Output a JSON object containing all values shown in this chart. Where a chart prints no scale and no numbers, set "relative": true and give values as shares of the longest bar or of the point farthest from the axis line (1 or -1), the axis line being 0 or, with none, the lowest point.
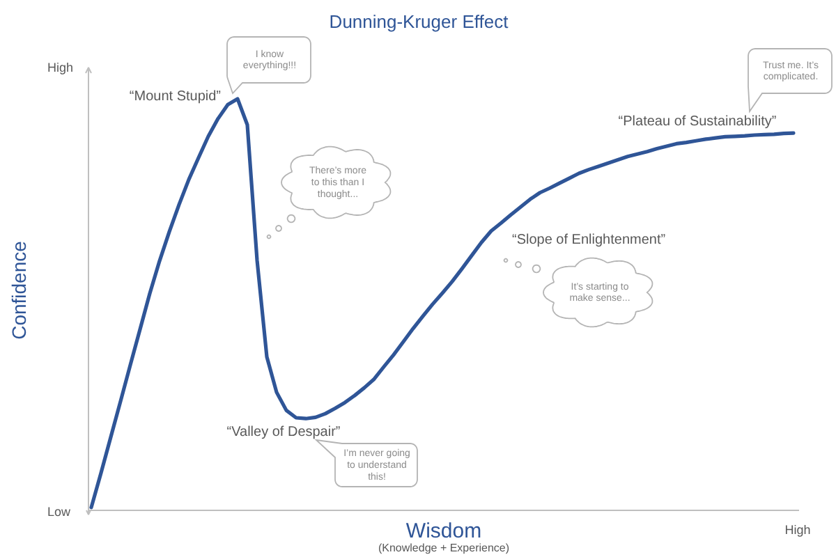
{
  "chart_data": {
    "type": "line",
    "relative": true,
    "title": "Dunning-Kruger Effect",
    "xlabel": "Wisdom",
    "ylabel": "Confidence",
    "categories": [
      null,
      null,
      null,
      null,
      null,
      null,
      null,
      null,
      null,
      null,
      null,
      null,
      null,
      null,
      null,
      null,
      null,
      null,
      null,
      null,
      null,
      null,
      null,
      null,
      null,
      null,
      null,
      null,
      null,
      null,
      null,
      null,
      null,
      null,
      null,
      null,
      null,
      null,
      null,
      null,
      null,
      null,
      null,
      null,
      null,
      null,
      null,
      null,
      null,
      null,
      null,
      null,
      null,
      null,
      null,
      null,
      null,
      null,
      null,
      null,
      null,
      null,
      null,
      null,
      null,
      null,
      null,
      null,
      null,
      null,
      null,
      null,
      null
    ],
    "series": [
      {
        "color": "#2f5597",
        "values": [
          0.007,
          0.091,
          0.178,
          0.265,
          0.353,
          0.44,
          0.527,
          0.606,
          0.677,
          0.743,
          0.804,
          0.857,
          0.909,
          0.952,
          0.986,
          1.0,
          0.937,
          0.608,
          0.373,
          0.287,
          0.243,
          0.225,
          0.223,
          0.226,
          0.235,
          0.248,
          0.262,
          0.279,
          0.298,
          0.319,
          0.349,
          0.378,
          0.41,
          0.442,
          0.472,
          0.501,
          0.528,
          0.556,
          0.587,
          0.619,
          0.651,
          0.679,
          0.698,
          0.718,
          0.737,
          0.756,
          0.772,
          0.783,
          0.795,
          0.807,
          0.819,
          0.828,
          0.836,
          0.844,
          0.852,
          0.86,
          0.866,
          0.872,
          0.879,
          0.885,
          0.891,
          0.894,
          0.898,
          0.902,
          0.905,
          0.908,
          0.909,
          0.91,
          0.912,
          0.913,
          0.914,
          0.916,
          0.917
        ]
      }
    ],
    "annotations": [
      "“Mount Stupid”",
      "I know everything!!!",
      "There’s more to this than I thought...",
      "“Valley of Despair”",
      "I’m never going to understand this!",
      "“Slope of Enlightenment”",
      "It’s starting to make sense...",
      "“Plateau of Sustainability”",
      "Trust me. It’s complicated.",
      "High",
      "Low",
      "High",
      "(Knowledge + Experience)"
    ]
  }
}
